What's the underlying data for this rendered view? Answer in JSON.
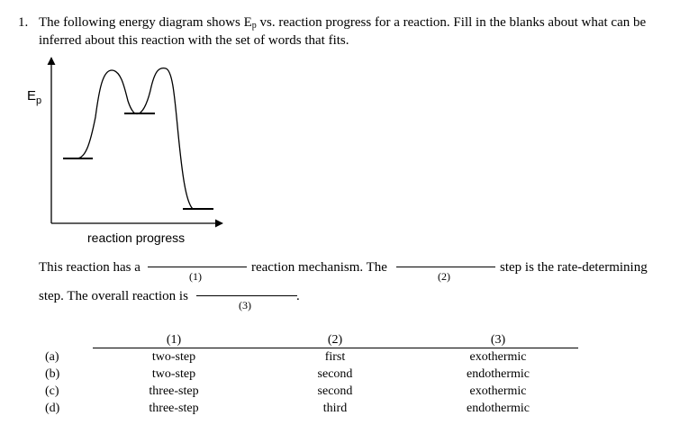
{
  "question": {
    "number": "1.",
    "line1_pre": "The following energy diagram shows E",
    "line1_sub": "p",
    "line1_post": " vs. reaction progress for a reaction. Fill in the blanks about what can be",
    "line2": "inferred about this reaction with the set of words that fits."
  },
  "diagram": {
    "y_label": "E",
    "y_label_sub": "p",
    "x_label": "reaction progress"
  },
  "statement": {
    "part1": "This reaction has a",
    "blank1": "(1)",
    "part2": "reaction mechanism. The",
    "blank2": "(2)",
    "part3": "step is the rate-determining",
    "part4": "step. The overall reaction is",
    "blank3": "(3)",
    "part5": "."
  },
  "options": {
    "headers": [
      "(1)",
      "(2)",
      "(3)"
    ],
    "rows": [
      {
        "label": "(a)",
        "c1": "two-step",
        "c2": "first",
        "c3": "exothermic"
      },
      {
        "label": "(b)",
        "c1": "two-step",
        "c2": "second",
        "c3": "endothermic"
      },
      {
        "label": "(c)",
        "c1": "three-step",
        "c2": "second",
        "c3": "exothermic"
      },
      {
        "label": "(d)",
        "c1": "three-step",
        "c2": "third",
        "c3": "endothermic"
      }
    ]
  }
}
